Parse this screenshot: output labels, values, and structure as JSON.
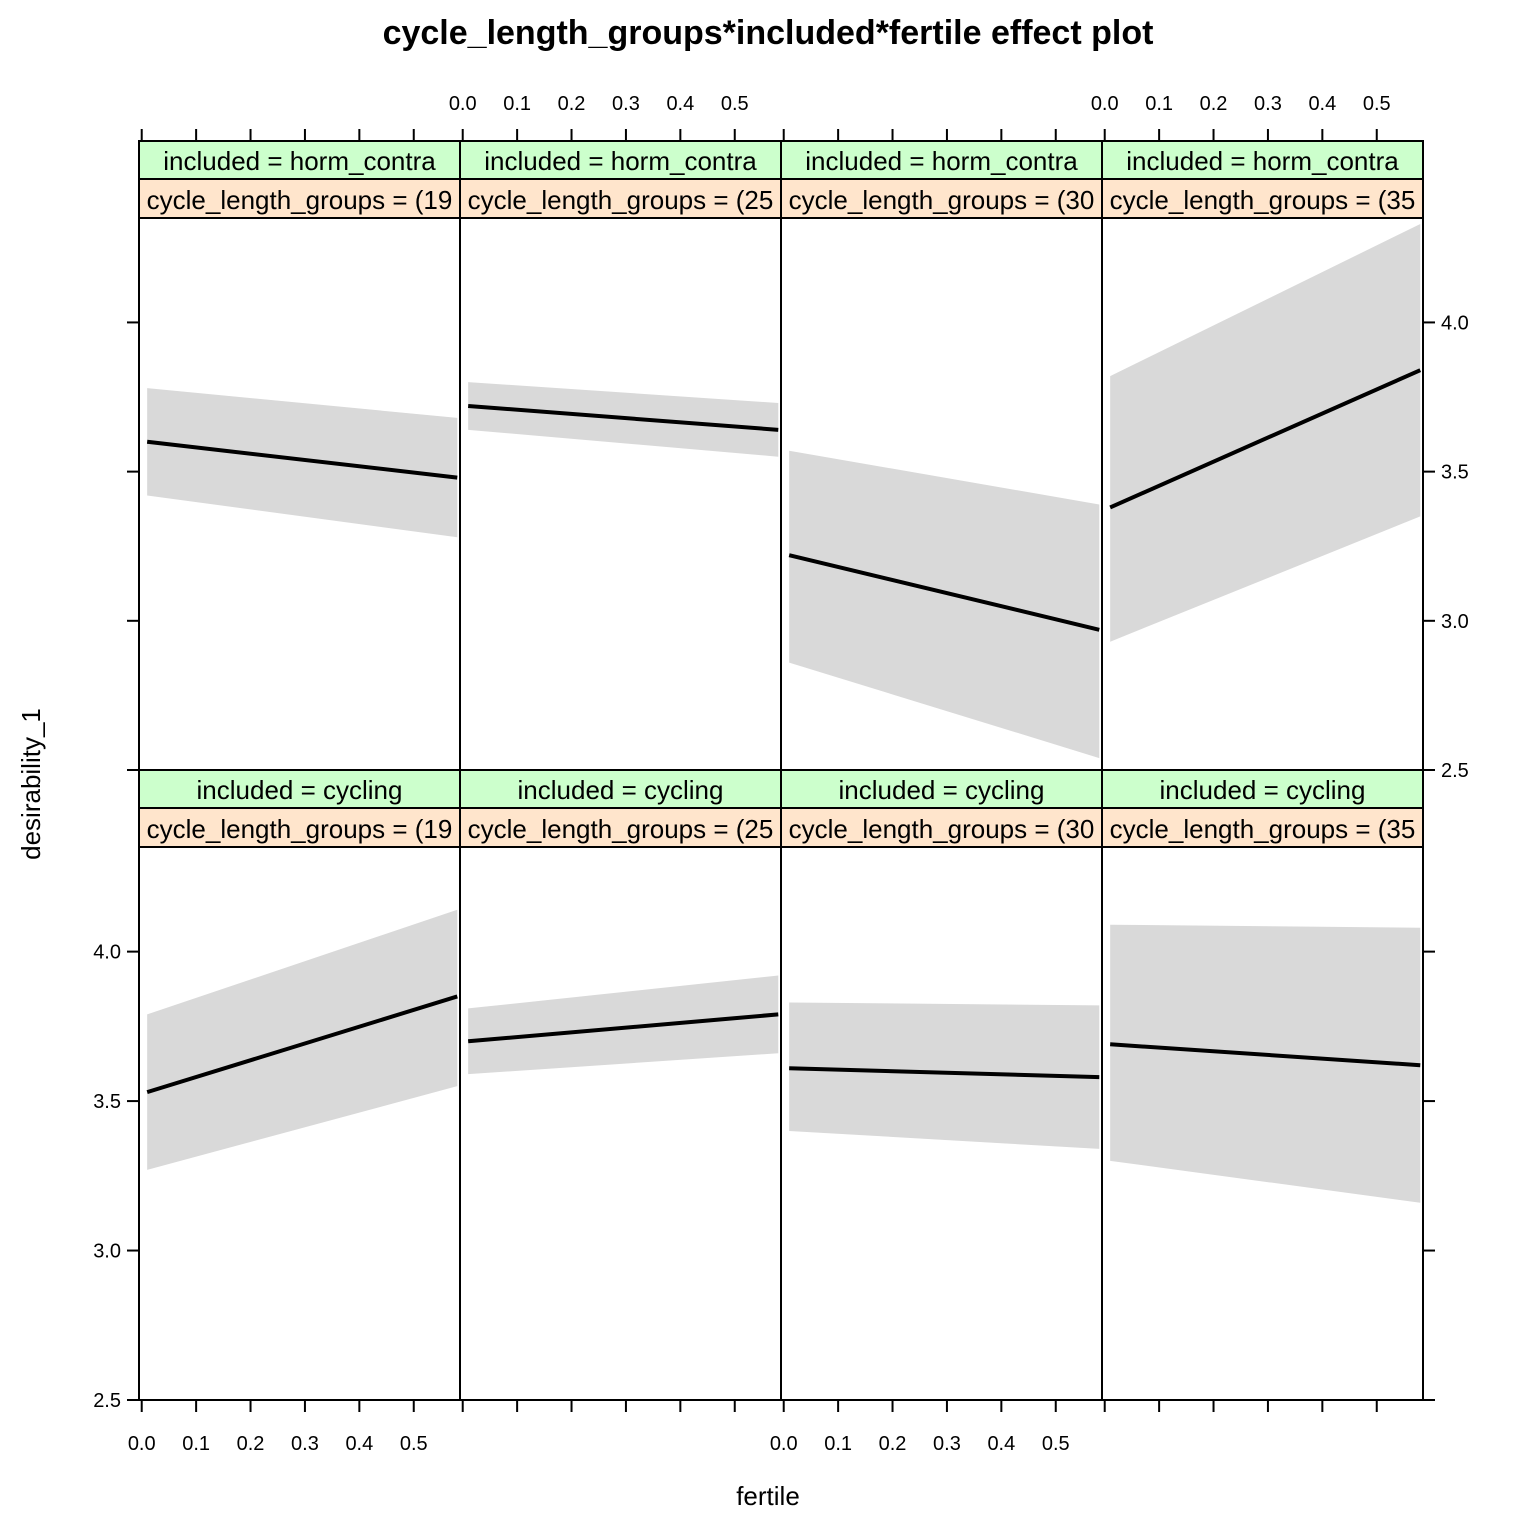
{
  "chart_data": {
    "type": "line",
    "title": "cycle_length_groups*included*fertile effect plot",
    "xlabel": "fertile",
    "ylabel": "desirability_1",
    "xlim": [
      -0.005,
      0.585
    ],
    "ylim": [
      2.5,
      4.35
    ],
    "x_ticks": [
      0.0,
      0.1,
      0.2,
      0.3,
      0.4,
      0.5
    ],
    "x_tick_labels": [
      "0.0",
      "0.1",
      "0.2",
      "0.3",
      "0.4",
      "0.5"
    ],
    "y_ticks": [
      2.5,
      3.0,
      3.5,
      4.0
    ],
    "y_tick_labels": [
      "2.5",
      "3.0",
      "3.5",
      "4.0"
    ],
    "strip_colors": {
      "included": "#ccffcc",
      "cycle_length_groups": "#ffe5cc"
    },
    "band_color": "#d9d9d9",
    "line_color": "#000000",
    "panels": [
      {
        "row": "top",
        "col": 0,
        "strip_included": "included = horm_contra",
        "strip_cycle": "cycle_length_groups = (19",
        "x": [
          0.01,
          0.58
        ],
        "fit": [
          3.6,
          3.48
        ],
        "lower": [
          3.42,
          3.28
        ],
        "upper": [
          3.78,
          3.68
        ]
      },
      {
        "row": "top",
        "col": 1,
        "strip_included": "included = horm_contra",
        "strip_cycle": "cycle_length_groups = (25",
        "x": [
          0.01,
          0.58
        ],
        "fit": [
          3.72,
          3.64
        ],
        "lower": [
          3.64,
          3.55
        ],
        "upper": [
          3.8,
          3.73
        ]
      },
      {
        "row": "top",
        "col": 2,
        "strip_included": "included = horm_contra",
        "strip_cycle": "cycle_length_groups = (30",
        "x": [
          0.01,
          0.58
        ],
        "fit": [
          3.22,
          2.97
        ],
        "lower": [
          2.86,
          2.54
        ],
        "upper": [
          3.57,
          3.39
        ]
      },
      {
        "row": "top",
        "col": 3,
        "strip_included": "included = horm_contra",
        "strip_cycle": "cycle_length_groups = (35",
        "x": [
          0.01,
          0.58
        ],
        "fit": [
          3.38,
          3.84
        ],
        "lower": [
          2.93,
          3.35
        ],
        "upper": [
          3.82,
          4.33
        ]
      },
      {
        "row": "bottom",
        "col": 0,
        "strip_included": "included = cycling",
        "strip_cycle": "cycle_length_groups = (19",
        "x": [
          0.01,
          0.58
        ],
        "fit": [
          3.53,
          3.85
        ],
        "lower": [
          3.27,
          3.55
        ],
        "upper": [
          3.79,
          4.14
        ]
      },
      {
        "row": "bottom",
        "col": 1,
        "strip_included": "included = cycling",
        "strip_cycle": "cycle_length_groups = (25",
        "x": [
          0.01,
          0.58
        ],
        "fit": [
          3.7,
          3.79
        ],
        "lower": [
          3.59,
          3.66
        ],
        "upper": [
          3.81,
          3.92
        ]
      },
      {
        "row": "bottom",
        "col": 2,
        "strip_included": "included = cycling",
        "strip_cycle": "cycle_length_groups = (30",
        "x": [
          0.01,
          0.58
        ],
        "fit": [
          3.61,
          3.58
        ],
        "lower": [
          3.4,
          3.34
        ],
        "upper": [
          3.83,
          3.82
        ]
      },
      {
        "row": "bottom",
        "col": 3,
        "strip_included": "included = cycling",
        "strip_cycle": "cycle_length_groups = (35",
        "x": [
          0.01,
          0.58
        ],
        "fit": [
          3.69,
          3.62
        ],
        "lower": [
          3.3,
          3.16
        ],
        "upper": [
          4.09,
          4.08
        ]
      }
    ]
  }
}
